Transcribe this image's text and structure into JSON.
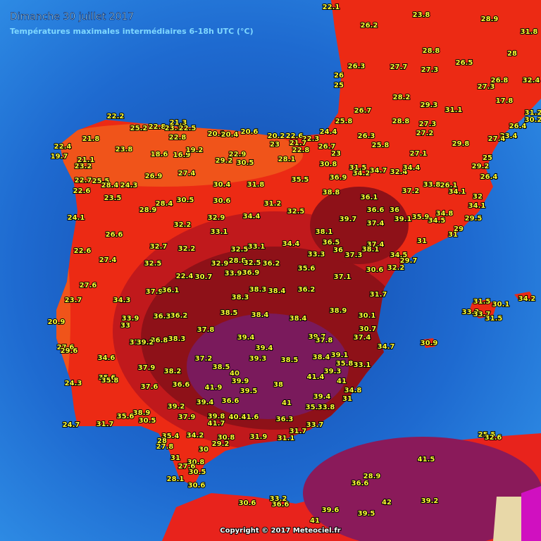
{
  "header": {
    "title": "Dimanche 30 juillet 2017",
    "subtitle": "Températures maximales intermédiaires 6-18h UTC (°C)"
  },
  "footer": {
    "copyright": "Copyright © 2017 Meteociel.fr"
  },
  "stations": [
    22.1,
    23.8,
    28.9,
    26.2,
    31.8,
    28.8,
    28,
    26.3,
    27.7,
    27.3,
    26.5,
    26,
    25,
    27.3,
    26.8,
    32.4,
    28.2,
    17.8,
    29.3,
    31.1,
    26.7,
    31.2,
    30.2,
    25.8,
    28.8,
    27.3,
    26.4,
    27.2,
    24.4,
    23.4,
    26.3,
    29.8,
    27.1,
    25.8,
    27.4,
    25,
    29.2,
    26.4,
    22.2,
    25.2,
    22.8,
    21.3,
    23.1,
    22.5,
    22.8,
    20.1,
    20.4,
    20.6,
    20.2,
    22.6,
    22.3,
    23,
    21.7,
    22.8,
    26.7,
    23,
    21.8,
    22.4,
    19.7,
    21.1,
    23.2,
    23.8,
    18.6,
    16.9,
    19.2,
    22.9,
    29.2,
    30.5,
    28.1,
    30.8,
    22.7,
    22.6,
    25.5,
    28.4,
    24.3,
    26.9,
    27.4,
    30.4,
    31.8,
    35.5,
    36.9,
    31.5,
    34.2,
    34.7,
    32.4,
    34.4,
    37.2,
    33.8,
    26.1,
    34.1,
    32,
    23.5,
    28.9,
    28.4,
    30.5,
    30.6,
    31.2,
    38.8,
    36.1,
    34.1,
    24.1,
    32.9,
    34.4,
    32.5,
    36.6,
    36,
    39.1,
    35.9,
    34.5,
    34.8,
    29.5,
    29,
    31,
    39.7,
    37.4,
    26.6,
    32.2,
    33.1,
    38.1,
    36.5,
    37.4,
    31,
    22.6,
    32.7,
    32.2,
    32.5,
    33.1,
    34.4,
    36,
    37.3,
    38.1,
    34.5,
    29.7,
    33.3,
    27.4,
    32.5,
    32.9,
    28.8,
    32.5,
    36.2,
    35.6,
    30.6,
    32.2,
    33.9,
    36.9,
    22.4,
    30.7,
    37.1,
    27.6,
    37.9,
    36.1,
    38.3,
    38.4,
    36.2,
    31.7,
    23.7,
    34.3,
    38.3,
    38.9,
    30.1,
    38.5,
    38.4,
    38.4,
    20.9,
    33.9,
    36.3,
    36.2,
    33,
    37.8,
    30.7,
    37.4,
    39.4,
    39.7,
    37.8,
    36.8,
    38.3,
    37.9,
    39.2,
    27.6,
    29.6,
    34.7,
    30.9,
    39.4,
    34.6,
    37.2,
    39.3,
    38.5,
    38.4,
    39.1,
    35.8,
    33.1,
    37.9,
    38.2,
    38.5,
    40,
    39.3,
    24.3,
    35.6,
    35.8,
    39.9,
    41.4,
    41,
    37.6,
    36.6,
    41.9,
    39.5,
    38,
    34.8,
    31,
    39.4,
    36.6,
    41,
    39.4,
    35.3,
    33.8,
    39.2,
    38.9,
    35.6,
    30.5,
    37.9,
    39.8,
    40.3,
    41.6,
    36.3,
    41.7,
    24.7,
    31.7,
    33.7,
    31.7,
    35.4,
    34.2,
    28,
    27.8,
    30.8,
    29.2,
    31.9,
    31.1,
    30,
    31,
    30.8,
    27.6,
    30.5,
    28.1,
    30.6,
    31.5,
    34.2,
    30.1,
    33.3,
    33.7,
    31.5,
    25.5,
    32.6,
    41.5,
    28.9,
    36.6,
    42,
    39.2,
    30.6,
    33.2,
    36.6,
    39.6,
    39.5,
    41
  ]
}
